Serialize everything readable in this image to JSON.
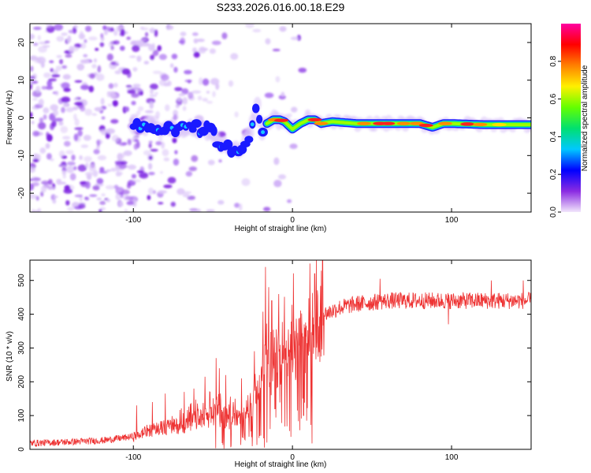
{
  "title": "S233.2026.016.00.18.E29",
  "chart_data": [
    {
      "id": "spectrogram",
      "type": "heatmap",
      "xlabel": "Height of straight line (km)",
      "ylabel": "Frequency (Hz)",
      "xlim": [
        -165,
        150
      ],
      "ylim": [
        -25,
        25
      ],
      "xticks": [
        -100,
        0,
        100
      ],
      "yticks": [
        -20,
        -10,
        0,
        10,
        20
      ],
      "ridge": [
        [
          -100,
          -2
        ],
        [
          -90,
          -2
        ],
        [
          -80,
          -3
        ],
        [
          -70,
          -2.5
        ],
        [
          -60,
          -3
        ],
        [
          -55,
          -3
        ],
        [
          -50,
          -4.5
        ],
        [
          -45,
          -6.5
        ],
        [
          -40,
          -8
        ],
        [
          -37,
          -9
        ],
        [
          -34,
          -8.5
        ],
        [
          -30,
          -7
        ],
        [
          -27,
          -4
        ],
        [
          -24,
          1
        ],
        [
          -22,
          3
        ],
        [
          -19,
          -3.5
        ],
        [
          -16,
          -1.5
        ],
        [
          -12,
          -0.5
        ],
        [
          -8,
          -0.5
        ],
        [
          -5,
          -1
        ],
        [
          0,
          -3
        ],
        [
          5,
          -1.5
        ],
        [
          10,
          -0.5
        ],
        [
          14,
          -0.5
        ],
        [
          18,
          -1.5
        ],
        [
          25,
          -1
        ],
        [
          40,
          -1.5
        ],
        [
          60,
          -1.5
        ],
        [
          80,
          -1.5
        ],
        [
          88,
          -2.5
        ],
        [
          95,
          -1.5
        ],
        [
          100,
          -1.5
        ],
        [
          120,
          -1.8
        ],
        [
          150,
          -1.8
        ]
      ],
      "colorbar": {
        "label": "Normalized spectral amplitude",
        "min": 0.0,
        "max": 1.0,
        "ticks": [
          0.0,
          0.2,
          0.4,
          0.6,
          0.8
        ],
        "tick_labels": [
          "0.0",
          "0.2",
          "0.4",
          "0.6",
          "0.8"
        ],
        "stops": [
          "#f2e6fb",
          "#8a2be2",
          "#0000ff",
          "#00c8ff",
          "#00e070",
          "#64ff00",
          "#fff000",
          "#ff8000",
          "#ff0000",
          "#ff00a0"
        ]
      }
    },
    {
      "id": "snr",
      "type": "line",
      "xlabel": "Height of straight line (km)",
      "ylabel": "SNR (10 * v/v)",
      "xlim": [
        -165,
        150
      ],
      "ylim": [
        0,
        560
      ],
      "xticks": [
        -100,
        0,
        100
      ],
      "yticks": [
        0,
        100,
        200,
        300,
        400,
        500
      ],
      "color": "#ee3333",
      "trend": [
        [
          -165,
          18
        ],
        [
          -140,
          22
        ],
        [
          -120,
          26
        ],
        [
          -100,
          38
        ],
        [
          -90,
          55
        ],
        [
          -80,
          65
        ],
        [
          -70,
          70
        ],
        [
          -60,
          85
        ],
        [
          -50,
          100
        ],
        [
          -45,
          100
        ],
        [
          -40,
          90
        ],
        [
          -35,
          90
        ],
        [
          -30,
          80
        ],
        [
          -25,
          150
        ],
        [
          -20,
          220
        ],
        [
          -16,
          250
        ],
        [
          -14,
          200
        ],
        [
          -10,
          270
        ],
        [
          -5,
          300
        ],
        [
          0,
          320
        ],
        [
          5,
          300
        ],
        [
          8,
          330
        ],
        [
          10,
          360
        ],
        [
          15,
          380
        ],
        [
          20,
          400
        ],
        [
          25,
          410
        ],
        [
          30,
          420
        ],
        [
          40,
          430
        ],
        [
          60,
          440
        ],
        [
          80,
          440
        ],
        [
          100,
          440
        ],
        [
          120,
          440
        ],
        [
          150,
          440
        ]
      ],
      "spikes": [
        [
          -98,
          130
        ],
        [
          -88,
          140
        ],
        [
          -80,
          165
        ],
        [
          -68,
          170
        ],
        [
          -62,
          180
        ],
        [
          -55,
          215
        ],
        [
          -48,
          270
        ],
        [
          -46,
          240
        ],
        [
          -42,
          220
        ],
        [
          -36,
          150
        ],
        [
          -32,
          210
        ],
        [
          -17,
          540
        ],
        [
          -15,
          480
        ],
        [
          -13,
          440
        ],
        [
          7,
          480
        ],
        [
          9,
          555
        ],
        [
          11,
          550
        ],
        [
          14,
          520
        ],
        [
          98,
          370
        ],
        [
          55,
          505
        ],
        [
          125,
          500
        ],
        [
          145,
          500
        ]
      ],
      "dips": [
        [
          -16,
          20
        ],
        [
          -14,
          60
        ],
        [
          -11,
          120
        ],
        [
          7,
          100
        ],
        [
          9,
          85
        ],
        [
          12,
          180
        ],
        [
          -30,
          30
        ],
        [
          -25,
          60
        ],
        [
          98,
          370
        ]
      ]
    }
  ]
}
